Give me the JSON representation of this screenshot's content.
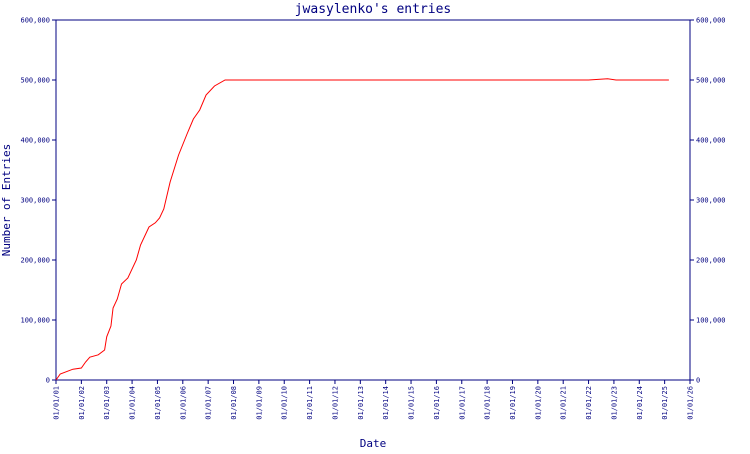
{
  "chart_data": {
    "type": "line",
    "title": "jwasylenko's entries",
    "x_label": "Date",
    "y_label": "Number of Entries",
    "x": [
      "01/01/01",
      "03/01/01",
      "09/01/01",
      "01/01/02",
      "03/01/02",
      "05/01/02",
      "09/01/02",
      "12/01/02",
      "01/01/03",
      "03/01/03",
      "04/01/03",
      "06/01/03",
      "08/01/03",
      "11/01/03",
      "03/01/04",
      "05/01/04",
      "09/01/04",
      "12/01/04",
      "02/01/05",
      "04/01/05",
      "07/01/05",
      "11/01/05",
      "03/01/06",
      "06/01/06",
      "09/01/06",
      "12/01/06",
      "04/01/07",
      "09/01/07",
      "01/01/08",
      "01/01/22",
      "10/01/22",
      "02/01/23",
      "01/01/25",
      "03/01/25"
    ],
    "series": [
      {
        "name": "entries",
        "color": "#ff0000",
        "values": [
          0,
          10000,
          18000,
          20000,
          30000,
          38000,
          42000,
          50000,
          72000,
          90000,
          120000,
          135000,
          160000,
          170000,
          200000,
          225000,
          255000,
          262000,
          270000,
          285000,
          330000,
          375000,
          410000,
          435000,
          450000,
          475000,
          490000,
          500000,
          500000,
          500000,
          502000,
          500000,
          500000,
          500000
        ]
      }
    ],
    "xlim": [
      "01/01/01",
      "01/01/26"
    ],
    "xticks": [
      "01/01/01",
      "01/01/02",
      "01/01/03",
      "01/01/04",
      "01/01/05",
      "01/01/06",
      "01/01/07",
      "01/01/08",
      "01/01/09",
      "01/01/10",
      "01/01/11",
      "01/01/12",
      "01/01/13",
      "01/01/14",
      "01/01/15",
      "01/01/16",
      "01/01/17",
      "01/01/18",
      "01/01/19",
      "01/01/20",
      "01/01/21",
      "01/01/22",
      "01/01/23",
      "01/01/24",
      "01/01/25",
      "01/01/26"
    ],
    "ylim": [
      0,
      600000
    ],
    "yticks": [
      0,
      {
        "value": 100000,
        "label": "100,000"
      },
      {
        "value": 200000,
        "label": "200,000"
      },
      {
        "value": 300000,
        "label": "300,000"
      },
      {
        "value": 400000,
        "label": "400,000"
      },
      {
        "value": 500000,
        "label": "500,000"
      },
      {
        "value": 600000,
        "label": "600,000"
      }
    ],
    "y2lim": [
      0,
      600000
    ],
    "y2ticks": [
      0,
      {
        "value": 100000,
        "label": "100,000"
      },
      {
        "value": 200000,
        "label": "200,000"
      },
      {
        "value": 300000,
        "label": "300,000"
      },
      {
        "value": 400000,
        "label": "400,000"
      },
      {
        "value": 500000,
        "label": "500,000"
      },
      {
        "value": 600000,
        "label": "600,000"
      }
    ]
  }
}
